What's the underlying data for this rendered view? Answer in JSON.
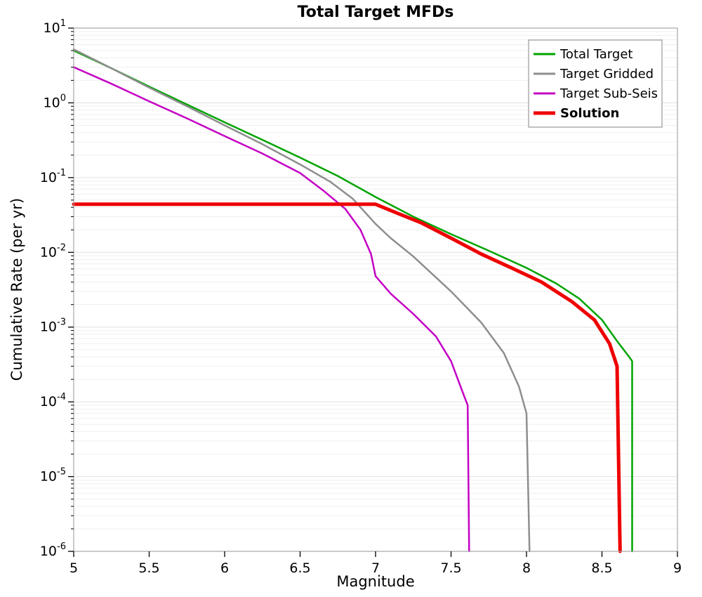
{
  "chart_data": {
    "type": "line",
    "title": "Total Target MFDs",
    "xlabel": "Magnitude",
    "ylabel": "Cumulative Rate (per yr)",
    "xlim": [
      5,
      9
    ],
    "ylim": [
      1e-06,
      10
    ],
    "y_scale": "log",
    "x_ticks": [
      5,
      5.5,
      6,
      6.5,
      7,
      7.5,
      8,
      8.5,
      9
    ],
    "x_tick_labels": [
      "5",
      "5.5",
      "6",
      "6.5",
      "7",
      "7.5",
      "8",
      "8.5",
      "9"
    ],
    "y_tick_exponents": [
      1,
      0,
      -1,
      -2,
      -3,
      -4,
      -5,
      -6
    ],
    "grid": "horizontal-log-minor",
    "legend_position": "top-right",
    "series": [
      {
        "name": "Total Target",
        "color": "#00a400",
        "width": 2.5,
        "bold_label": false,
        "points": [
          [
            5.0,
            5.0
          ],
          [
            5.25,
            2.9
          ],
          [
            5.5,
            1.65
          ],
          [
            5.75,
            0.95
          ],
          [
            6.0,
            0.55
          ],
          [
            6.25,
            0.32
          ],
          [
            6.5,
            0.185
          ],
          [
            6.75,
            0.105
          ],
          [
            7.0,
            0.055
          ],
          [
            7.25,
            0.03
          ],
          [
            7.5,
            0.0175
          ],
          [
            7.75,
            0.0105
          ],
          [
            8.0,
            0.0062
          ],
          [
            8.2,
            0.0038
          ],
          [
            8.35,
            0.0024
          ],
          [
            8.5,
            0.00125
          ],
          [
            8.6,
            0.00065
          ],
          [
            8.68,
            0.0004
          ],
          [
            8.7,
            0.00035
          ],
          [
            8.7,
            1e-06
          ]
        ]
      },
      {
        "name": "Target Gridded",
        "color": "#8e8e8e",
        "width": 2.5,
        "bold_label": false,
        "points": [
          [
            5.0,
            5.2
          ],
          [
            5.25,
            2.9
          ],
          [
            5.5,
            1.6
          ],
          [
            5.75,
            0.9
          ],
          [
            6.0,
            0.5
          ],
          [
            6.25,
            0.28
          ],
          [
            6.5,
            0.15
          ],
          [
            6.7,
            0.088
          ],
          [
            6.85,
            0.052
          ],
          [
            7.0,
            0.024
          ],
          [
            7.1,
            0.0155
          ],
          [
            7.25,
            0.0088
          ],
          [
            7.5,
            0.003
          ],
          [
            7.7,
            0.00115
          ],
          [
            7.85,
            0.00045
          ],
          [
            7.95,
            0.00016
          ],
          [
            8.0,
            7e-05
          ],
          [
            8.02,
            1e-06
          ]
        ]
      },
      {
        "name": "Target Sub-Seis",
        "color": "#c400c4",
        "width": 2.5,
        "bold_label": false,
        "points": [
          [
            5.0,
            3.0
          ],
          [
            5.25,
            1.8
          ],
          [
            5.5,
            1.05
          ],
          [
            5.75,
            0.62
          ],
          [
            6.0,
            0.36
          ],
          [
            6.25,
            0.21
          ],
          [
            6.5,
            0.115
          ],
          [
            6.65,
            0.068
          ],
          [
            6.8,
            0.038
          ],
          [
            6.9,
            0.02
          ],
          [
            6.97,
            0.0095
          ],
          [
            7.0,
            0.0048
          ],
          [
            7.1,
            0.0028
          ],
          [
            7.25,
            0.0015
          ],
          [
            7.4,
            0.00075
          ],
          [
            7.5,
            0.00035
          ],
          [
            7.58,
            0.00013
          ],
          [
            7.61,
            9e-05
          ],
          [
            7.62,
            1e-06
          ]
        ]
      },
      {
        "name": "Solution",
        "color": "#ee0000",
        "width": 5,
        "bold_label": true,
        "points": [
          [
            5.0,
            0.044
          ],
          [
            7.0,
            0.044
          ],
          [
            7.15,
            0.033
          ],
          [
            7.3,
            0.025
          ],
          [
            7.5,
            0.0155
          ],
          [
            7.7,
            0.0095
          ],
          [
            7.9,
            0.0062
          ],
          [
            8.1,
            0.004
          ],
          [
            8.3,
            0.0022
          ],
          [
            8.45,
            0.00125
          ],
          [
            8.55,
            0.0006
          ],
          [
            8.6,
            0.0003
          ],
          [
            8.62,
            1e-06
          ]
        ]
      }
    ]
  }
}
